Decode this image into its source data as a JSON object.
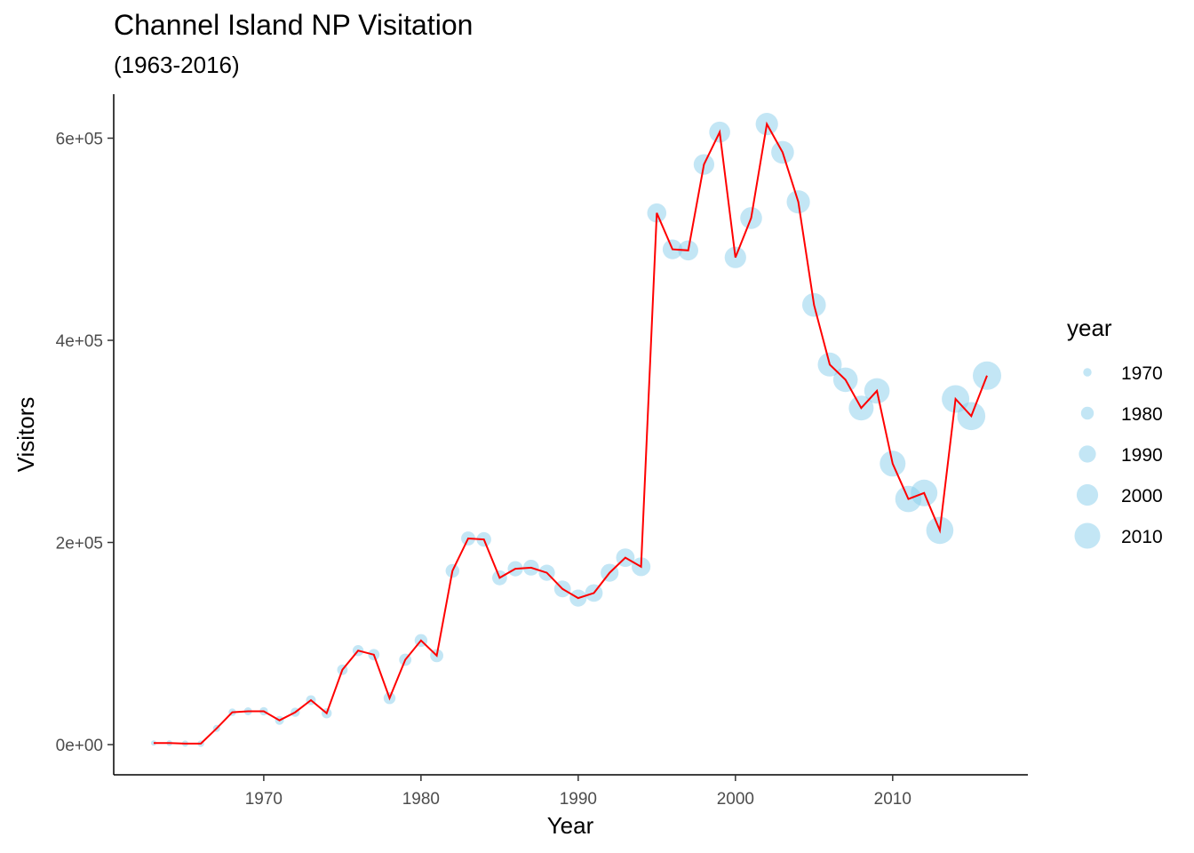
{
  "chart_data": {
    "type": "scatter",
    "title": "Channel Island NP Visitation",
    "subtitle": "(1963-2016)",
    "xlabel": "Year",
    "ylabel": "Visitors",
    "xlim": [
      1963,
      2016
    ],
    "ylim": [
      0,
      620000
    ],
    "x_ticks": [
      1970,
      1980,
      1990,
      2000,
      2010
    ],
    "y_ticks": [
      0,
      200000,
      400000,
      600000
    ],
    "y_tick_labels": [
      "0e+00",
      "2e+05",
      "4e+05",
      "6e+05"
    ],
    "grid": false,
    "legend": {
      "title": "year",
      "position": "right",
      "entries": [
        "1970",
        "1980",
        "1990",
        "2000",
        "2010"
      ]
    },
    "point_color": "#87CEEB",
    "point_opacity": 0.5,
    "line_color": "#FF0000",
    "point_size_encodes": "year",
    "x": [
      1963,
      1964,
      1965,
      1966,
      1967,
      1968,
      1969,
      1970,
      1971,
      1972,
      1973,
      1974,
      1975,
      1976,
      1977,
      1978,
      1979,
      1980,
      1981,
      1982,
      1983,
      1984,
      1985,
      1986,
      1987,
      1988,
      1989,
      1990,
      1991,
      1992,
      1993,
      1994,
      1995,
      1996,
      1997,
      1998,
      1999,
      2000,
      2001,
      2002,
      2003,
      2004,
      2005,
      2006,
      2007,
      2008,
      2009,
      2010,
      2011,
      2012,
      2013,
      2014,
      2015,
      2016
    ],
    "y": [
      1500,
      1500,
      1000,
      1000,
      16000,
      32000,
      33000,
      33000,
      24000,
      32000,
      44000,
      31000,
      74000,
      93000,
      89000,
      46000,
      84000,
      103000,
      88000,
      172000,
      204000,
      203000,
      165000,
      174000,
      175000,
      170000,
      154000,
      145000,
      150000,
      170000,
      185000,
      176000,
      526000,
      490000,
      489000,
      574000,
      606000,
      482000,
      521000,
      614000,
      586000,
      537000,
      435000,
      376000,
      361000,
      333000,
      350000,
      278000,
      243000,
      249000,
      212000,
      342000,
      325000,
      365000
    ]
  }
}
